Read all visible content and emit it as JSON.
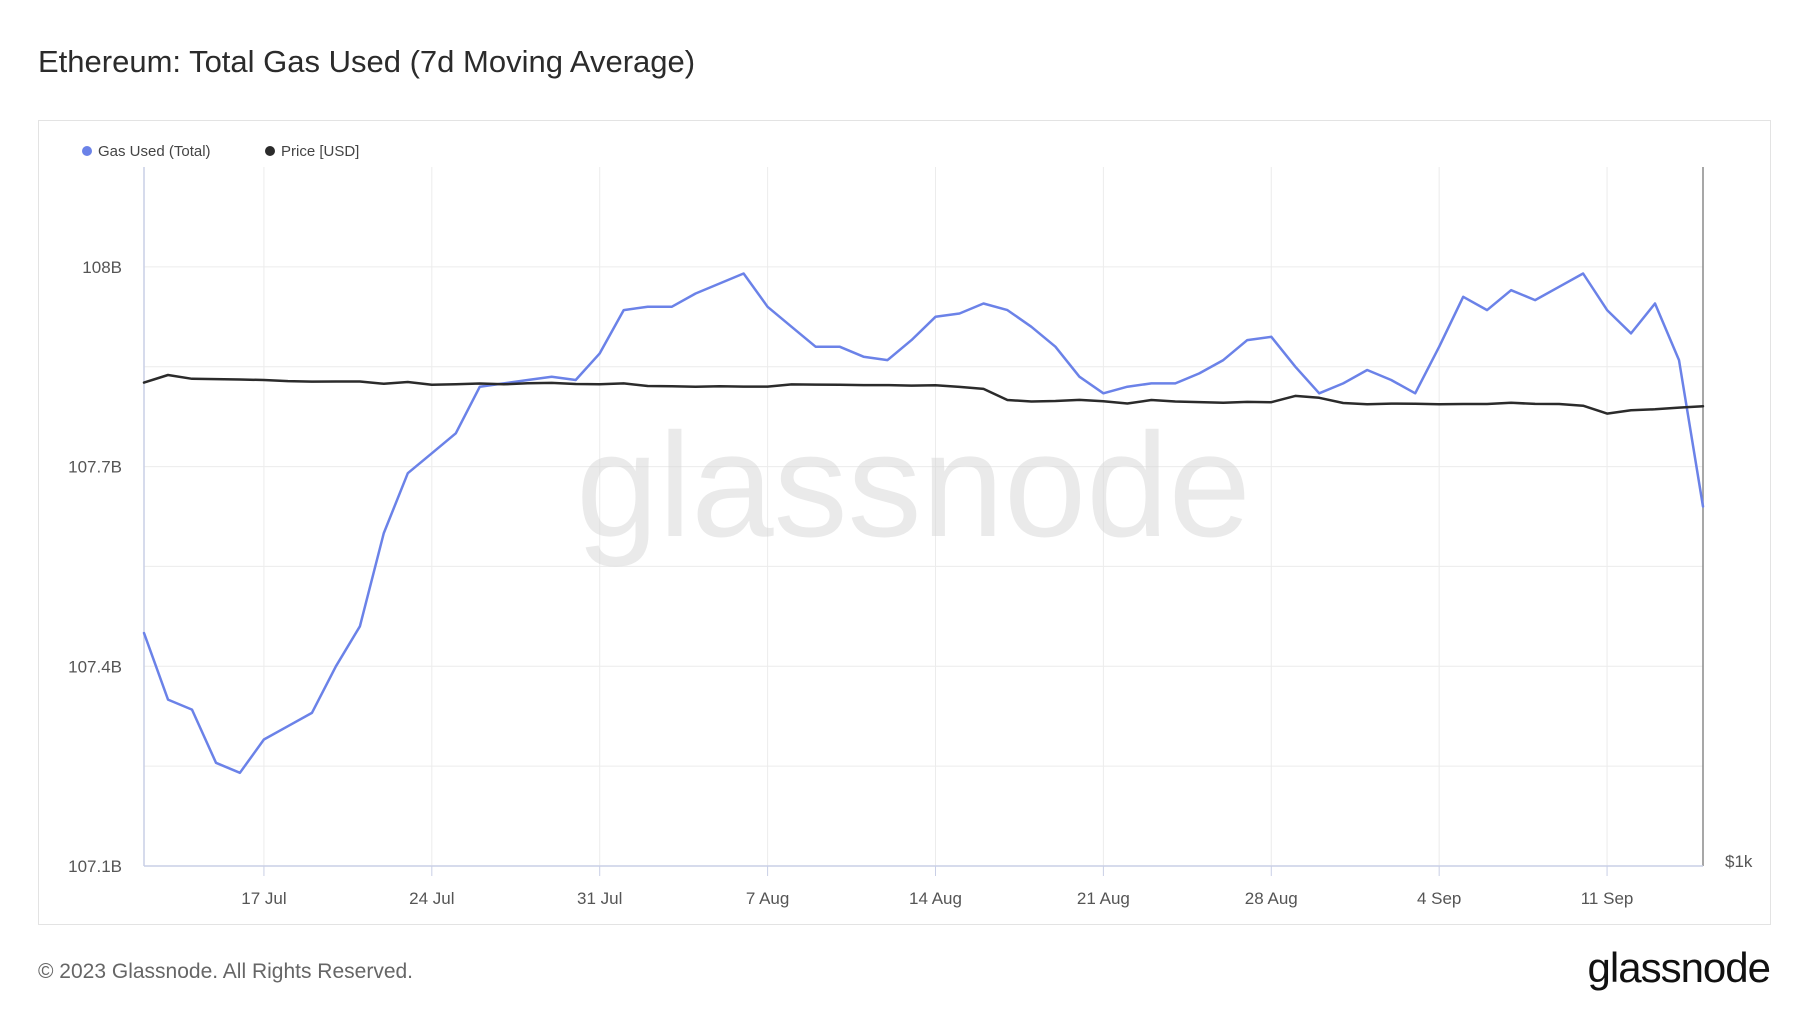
{
  "title": "Ethereum: Total Gas Used (7d Moving Average)",
  "footer": {
    "copyright": "© 2023 Glassnode. All Rights Reserved.",
    "logo_text": "glassnode"
  },
  "watermark": "glassnode",
  "colors": {
    "gas": "#6b82e8",
    "price": "#2b2b2b",
    "grid": "#ececec",
    "axis": "#c9cfe6"
  },
  "chart_data": {
    "type": "line",
    "title": "Ethereum: Total Gas Used (7d Moving Average)",
    "legend_position": "top-left",
    "grid": true,
    "x_axis": {
      "start": "2023-07-12",
      "end": "2023-09-15",
      "ticks": [
        "17 Jul",
        "24 Jul",
        "31 Jul",
        "7 Aug",
        "14 Aug",
        "21 Aug",
        "28 Aug",
        "4 Sep",
        "11 Sep"
      ]
    },
    "y_axis_left": {
      "range": [
        107.1,
        108.15
      ],
      "ticks": [
        "108B",
        "107.7B",
        "107.4B",
        "107.1B"
      ],
      "tick_values": [
        108.0,
        107.7,
        107.4,
        107.1
      ]
    },
    "y_axis_right": {
      "tick": "$1k"
    },
    "series": [
      {
        "name": "Gas Used (Total)",
        "axis": "left",
        "color": "#6b82e8",
        "x": [
          "2023-07-12",
          "2023-07-13",
          "2023-07-14",
          "2023-07-15",
          "2023-07-16",
          "2023-07-17",
          "2023-07-18",
          "2023-07-19",
          "2023-07-20",
          "2023-07-21",
          "2023-07-22",
          "2023-07-23",
          "2023-07-24",
          "2023-07-25",
          "2023-07-26",
          "2023-07-27",
          "2023-07-28",
          "2023-07-29",
          "2023-07-30",
          "2023-07-31",
          "2023-08-01",
          "2023-08-02",
          "2023-08-03",
          "2023-08-04",
          "2023-08-05",
          "2023-08-06",
          "2023-08-07",
          "2023-08-08",
          "2023-08-09",
          "2023-08-10",
          "2023-08-11",
          "2023-08-12",
          "2023-08-13",
          "2023-08-14",
          "2023-08-15",
          "2023-08-16",
          "2023-08-17",
          "2023-08-18",
          "2023-08-19",
          "2023-08-20",
          "2023-08-21",
          "2023-08-22",
          "2023-08-23",
          "2023-08-24",
          "2023-08-25",
          "2023-08-26",
          "2023-08-27",
          "2023-08-28",
          "2023-08-29",
          "2023-08-30",
          "2023-08-31",
          "2023-09-01",
          "2023-09-02",
          "2023-09-03",
          "2023-09-04",
          "2023-09-05",
          "2023-09-06",
          "2023-09-07",
          "2023-09-08",
          "2023-09-09",
          "2023-09-10",
          "2023-09-11",
          "2023-09-12",
          "2023-09-13",
          "2023-09-14",
          "2023-09-15"
        ],
        "values": [
          107.45,
          107.35,
          107.335,
          107.255,
          107.24,
          107.29,
          107.31,
          107.33,
          107.4,
          107.46,
          107.6,
          107.69,
          107.72,
          107.75,
          107.82,
          107.825,
          107.83,
          107.835,
          107.83,
          107.87,
          107.935,
          107.94,
          107.94,
          107.96,
          107.975,
          107.99,
          107.94,
          107.91,
          107.88,
          107.88,
          107.865,
          107.86,
          107.89,
          107.925,
          107.93,
          107.945,
          107.935,
          107.91,
          107.88,
          107.835,
          107.81,
          107.82,
          107.825,
          107.825,
          107.84,
          107.86,
          107.89,
          107.895,
          107.85,
          107.81,
          107.825,
          107.845,
          107.83,
          107.81,
          107.88,
          107.955,
          107.935,
          107.965,
          107.95,
          107.97,
          107.99,
          107.935,
          107.9,
          107.945,
          107.86,
          107.64
        ]
      },
      {
        "name": "Price [USD]",
        "axis": "right",
        "color": "#2b2b2b",
        "x": [
          "2023-07-12",
          "2023-07-13",
          "2023-07-14",
          "2023-07-15",
          "2023-07-16",
          "2023-07-17",
          "2023-07-18",
          "2023-07-19",
          "2023-07-20",
          "2023-07-21",
          "2023-07-22",
          "2023-07-23",
          "2023-07-24",
          "2023-07-25",
          "2023-07-26",
          "2023-07-27",
          "2023-07-28",
          "2023-07-29",
          "2023-07-30",
          "2023-07-31",
          "2023-08-01",
          "2023-08-02",
          "2023-08-03",
          "2023-08-04",
          "2023-08-05",
          "2023-08-06",
          "2023-08-07",
          "2023-08-08",
          "2023-08-09",
          "2023-08-10",
          "2023-08-11",
          "2023-08-12",
          "2023-08-13",
          "2023-08-14",
          "2023-08-15",
          "2023-08-16",
          "2023-08-17",
          "2023-08-18",
          "2023-08-19",
          "2023-08-20",
          "2023-08-21",
          "2023-08-22",
          "2023-08-23",
          "2023-08-24",
          "2023-08-25",
          "2023-08-26",
          "2023-08-27",
          "2023-08-28",
          "2023-08-29",
          "2023-08-30",
          "2023-08-31",
          "2023-09-01",
          "2023-09-02",
          "2023-09-03",
          "2023-09-04",
          "2023-09-05",
          "2023-09-06",
          "2023-09-07",
          "2023-09-08",
          "2023-09-09",
          "2023-09-10",
          "2023-09-11",
          "2023-09-12",
          "2023-09-13",
          "2023-09-14",
          "2023-09-15"
        ],
        "values": [
          1875,
          1934,
          1905,
          1902,
          1899,
          1895,
          1887,
          1883,
          1884,
          1884,
          1866,
          1880,
          1858,
          1862,
          1868,
          1862,
          1870,
          1873,
          1864,
          1862,
          1869,
          1849,
          1847,
          1843,
          1847,
          1844,
          1844,
          1861,
          1860,
          1858,
          1856,
          1856,
          1852,
          1854,
          1842,
          1826,
          1740,
          1728,
          1732,
          1741,
          1731,
          1713,
          1740,
          1728,
          1724,
          1719,
          1725,
          1723,
          1772,
          1757,
          1717,
          1707,
          1712,
          1711,
          1707,
          1709,
          1709,
          1718,
          1710,
          1709,
          1696,
          1634,
          1660,
          1668,
          1681,
          1692
        ]
      }
    ]
  }
}
